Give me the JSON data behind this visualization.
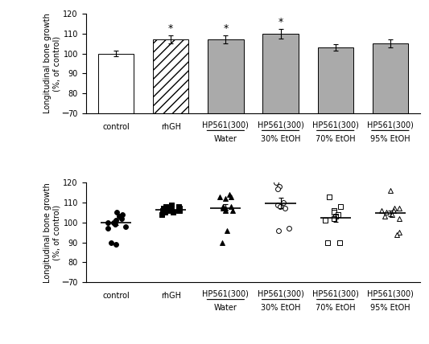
{
  "bar_values": [
    100,
    107,
    107,
    110,
    103,
    105
  ],
  "bar_errors": [
    1.5,
    2.0,
    2.0,
    2.5,
    1.5,
    2.0
  ],
  "bar_colors": [
    "white",
    "white",
    "#aaaaaa",
    "#aaaaaa",
    "#aaaaaa",
    "#aaaaaa"
  ],
  "bar_hatches": [
    "",
    "///",
    "",
    "",
    "",
    ""
  ],
  "bar_significant": [
    false,
    true,
    true,
    true,
    false,
    false
  ],
  "categories": [
    "control",
    "rhGH",
    "HP561(300)",
    "HP561(300)",
    "HP561(300)",
    "HP561(300)"
  ],
  "subcategories": [
    "",
    "",
    "Water",
    "30% EtOH",
    "70% EtOH",
    "95% EtOH"
  ],
  "ylabel": "Longitudinal bone growth\n(%, of control)",
  "ylim_bar": [
    70,
    120
  ],
  "yticks_bar": [
    70,
    80,
    90,
    100,
    110,
    120
  ],
  "dot_data": {
    "control": [
      100,
      102,
      99,
      103,
      98,
      105,
      101,
      97,
      90,
      89,
      103,
      104,
      100
    ],
    "rhGH": [
      106,
      107,
      108,
      105,
      106,
      107,
      104,
      105,
      106,
      108,
      109,
      106,
      107,
      106
    ],
    "water": [
      113,
      114,
      112,
      113,
      107,
      108,
      106,
      107,
      106,
      108,
      90,
      96
    ],
    "etoh30": [
      120,
      118,
      117,
      110,
      109,
      108,
      107,
      96,
      97
    ],
    "etoh70": [
      113,
      108,
      106,
      105,
      104,
      103,
      102,
      101,
      90,
      90
    ],
    "etoh95": [
      116,
      107,
      107,
      106,
      106,
      105,
      104,
      103,
      102,
      95,
      94
    ]
  },
  "dot_means": [
    100.0,
    106.2,
    107.2,
    109.8,
    102.2,
    104.6
  ],
  "dot_sem": [
    1.5,
    1.0,
    2.2,
    2.8,
    1.8,
    1.5
  ],
  "marker_styles": [
    "o",
    "s",
    "^",
    "o",
    "s",
    "^"
  ],
  "marker_filled": [
    true,
    true,
    true,
    false,
    false,
    false
  ],
  "scatter_size": 18,
  "background_color": "#f0f0f0"
}
